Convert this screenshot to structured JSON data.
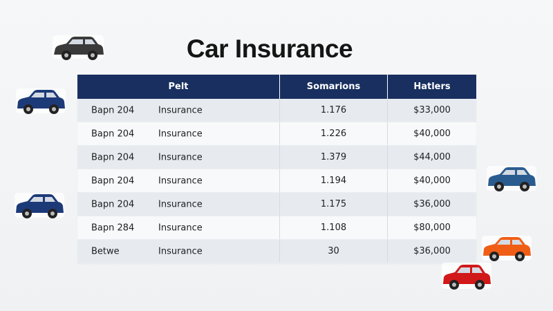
{
  "title": "Car Insurance",
  "table": {
    "headers": [
      "Pelt",
      "Somarions",
      "Hatlers"
    ],
    "rows": [
      {
        "name": "Bapn 204",
        "type": "Insurance",
        "sum": "1.176",
        "price": "$33,000"
      },
      {
        "name": "Bapn 204",
        "type": "Insurance",
        "sum": "1.226",
        "price": "$40,000"
      },
      {
        "name": "Bapn 204",
        "type": "Insurance",
        "sum": "1.379",
        "price": "$44,000"
      },
      {
        "name": "Bapn 204",
        "type": "Insurance",
        "sum": "1.194",
        "price": "$40,000"
      },
      {
        "name": "Bapn 204",
        "type": "Insurance",
        "sum": "1.175",
        "price": "$36,000"
      },
      {
        "name": "Bapn 284",
        "type": "Insurance",
        "sum": "1.108",
        "price": "$80,000"
      },
      {
        "name": "Betwe",
        "type": "Insurance",
        "sum": "30",
        "price": "$36,000"
      }
    ]
  },
  "decorations": {
    "car_icons": [
      {
        "name": "car-icon-dark-gray",
        "color": "#3a3a3a"
      },
      {
        "name": "car-icon-navy-left-top",
        "color": "#1d3a78"
      },
      {
        "name": "car-icon-navy-left-bottom",
        "color": "#1d3a78"
      },
      {
        "name": "car-icon-blue-right",
        "color": "#2b5c8f"
      },
      {
        "name": "car-icon-orange-right",
        "color": "#f05e16"
      },
      {
        "name": "car-icon-red-right",
        "color": "#d11919"
      }
    ]
  }
}
